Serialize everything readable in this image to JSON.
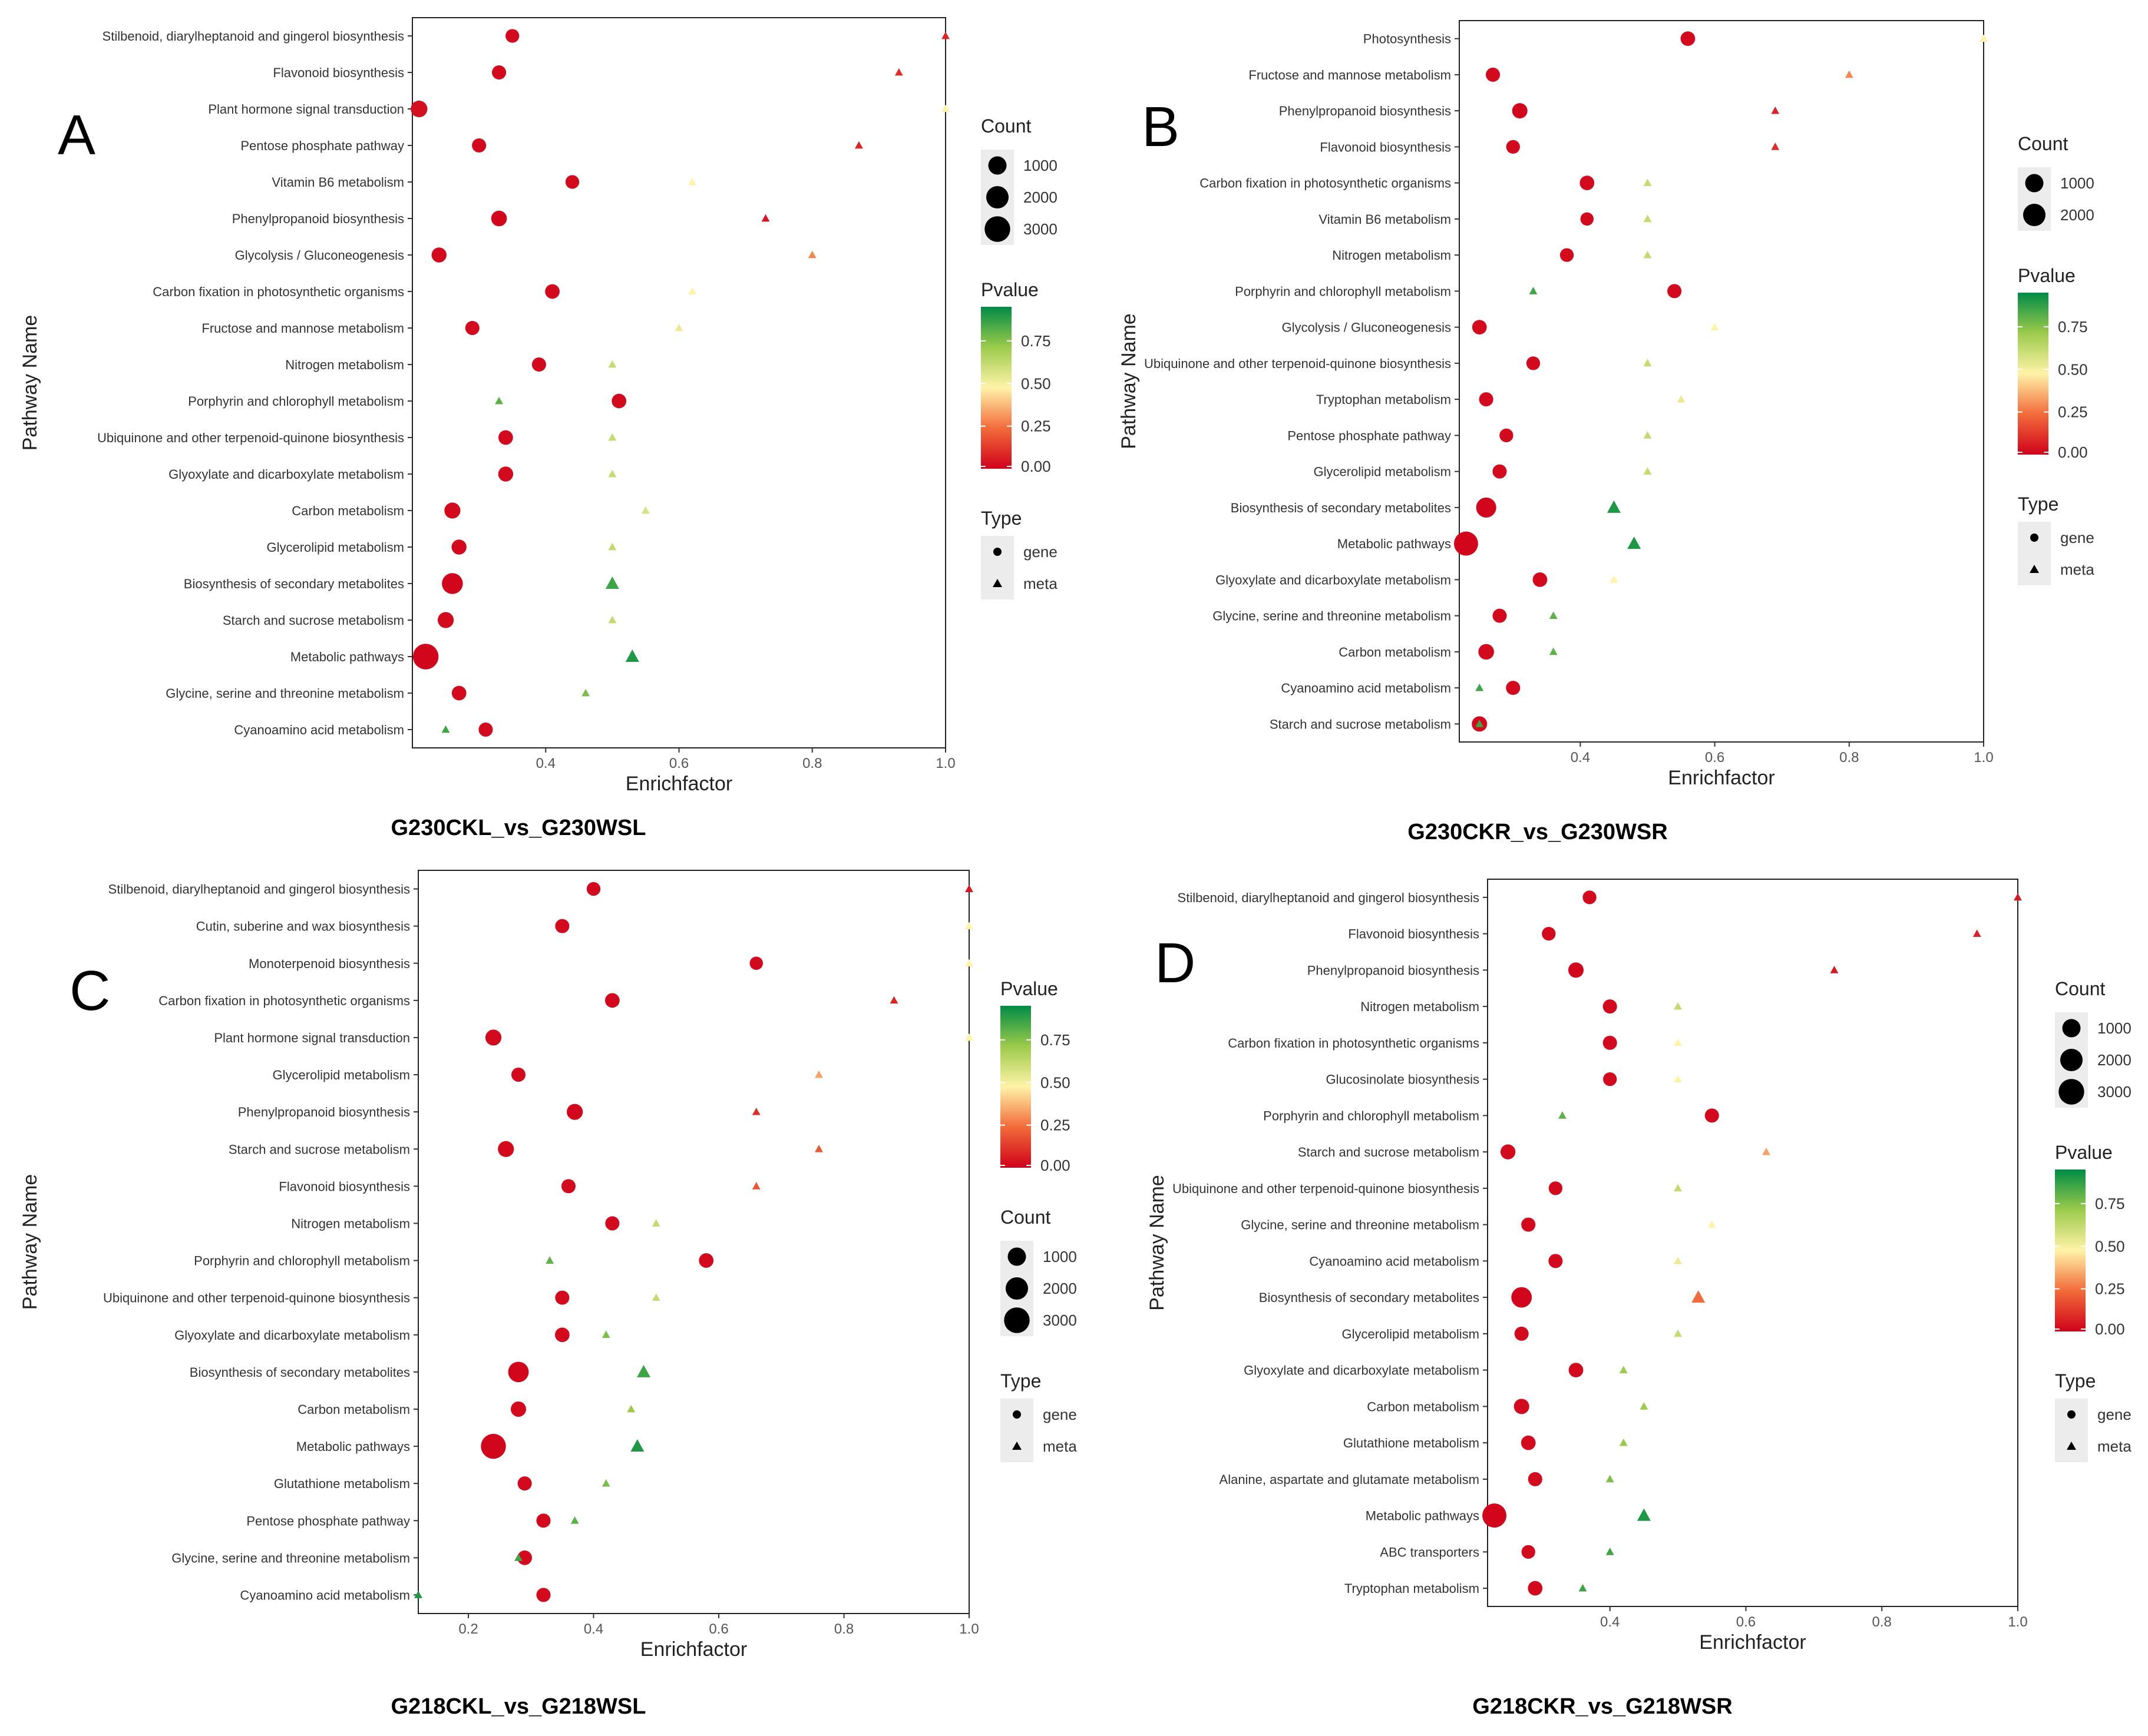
{
  "colors": {
    "grad_top": "#008b45",
    "grad_upper": "#9ccb4b",
    "grad_mid": "#fff3a8",
    "grad_lower": "#f26b3a",
    "grad_bottom": "#d0021b",
    "mark_dark": "#c8102e",
    "mark_green": "#1a8f54"
  },
  "chart_data": [
    {
      "type": "scatter",
      "panel_label": "A",
      "title": "G230CKL_vs_G230WSL",
      "xlabel": "Enrichfactor",
      "ylabel": "Pathway Name",
      "xlim": [
        0.2,
        1.0
      ],
      "xticks": [
        "0.4",
        "0.6",
        "0.8",
        "1.0"
      ],
      "categories": [
        "Stilbenoid, diarylheptanoid and gingerol biosynthesis",
        "Flavonoid biosynthesis",
        "Plant hormone signal transduction",
        "Pentose phosphate pathway",
        "Vitamin B6 metabolism",
        "Phenylpropanoid biosynthesis",
        "Glycolysis / Gluconeogenesis",
        "Carbon fixation in photosynthetic organisms",
        "Fructose and mannose metabolism",
        "Nitrogen metabolism",
        "Porphyrin and chlorophyll metabolism",
        "Ubiquinone and other terpenoid-quinone biosynthesis",
        "Glyoxylate and dicarboxylate metabolism",
        "Carbon metabolism",
        "Glycerolipid metabolism",
        "Biosynthesis of secondary metabolites",
        "Starch and sucrose metabolism",
        "Metabolic pathways",
        "Glycine, serine and threonine metabolism",
        "Cyanoamino acid metabolism"
      ],
      "series": [
        {
          "name": "gene",
          "enrichfactor": [
            0.35,
            0.33,
            0.21,
            0.3,
            0.44,
            0.33,
            0.24,
            0.41,
            0.29,
            0.39,
            0.51,
            0.34,
            0.34,
            0.26,
            0.27,
            0.26,
            0.25,
            0.22,
            0.27,
            0.31
          ],
          "count": [
            300,
            350,
            700,
            350,
            300,
            550,
            450,
            400,
            350,
            350,
            400,
            400,
            450,
            600,
            450,
            1600,
            600,
            3000,
            400,
            350
          ],
          "pvalue": [
            0.02,
            0.02,
            0.03,
            0.02,
            0.02,
            0.01,
            0.02,
            0.02,
            0.02,
            0.02,
            0.02,
            0.02,
            0.02,
            0.02,
            0.02,
            0.01,
            0.02,
            0.01,
            0.02,
            0.02
          ]
        },
        {
          "name": "meta",
          "enrichfactor": [
            1.0,
            0.93,
            1.0,
            0.87,
            0.62,
            0.73,
            0.8,
            0.62,
            0.6,
            0.5,
            0.33,
            0.5,
            0.5,
            0.55,
            0.5,
            0.5,
            0.5,
            0.53,
            0.46,
            0.25
          ],
          "count": [
            1,
            1,
            1,
            1,
            1,
            1,
            1,
            1,
            1,
            1,
            1,
            1,
            1,
            1,
            1,
            3,
            1,
            5,
            1,
            1
          ],
          "pvalue": [
            0.08,
            0.1,
            0.5,
            0.08,
            0.5,
            0.05,
            0.3,
            0.5,
            0.55,
            0.65,
            0.85,
            0.65,
            0.65,
            0.6,
            0.65,
            0.9,
            0.65,
            0.95,
            0.8,
            0.9
          ]
        }
      ],
      "legend": {
        "count_title": "Count",
        "count_levels": [
          1000,
          2000,
          3000
        ],
        "count_labels": [
          "1000",
          "2000",
          "3000"
        ],
        "pvalue_title": "Pvalue",
        "pvalue_ticks": [
          "0.75",
          "0.50",
          "0.25",
          "0.00"
        ],
        "type_title": "Type",
        "type_labels": [
          "gene",
          "meta"
        ],
        "order": [
          "count",
          "pvalue",
          "type"
        ]
      }
    },
    {
      "type": "scatter",
      "panel_label": "B",
      "title": "G230CKR_vs_G230WSR",
      "xlabel": "Enrichfactor",
      "ylabel": "Pathway Name",
      "xlim": [
        0.22,
        1.0
      ],
      "xticks": [
        "0.4",
        "0.6",
        "0.8",
        "1.0"
      ],
      "categories": [
        "Photosynthesis",
        "Fructose and mannose metabolism",
        "Phenylpropanoid biosynthesis",
        "Flavonoid biosynthesis",
        "Carbon fixation in photosynthetic organisms",
        "Vitamin B6 metabolism",
        "Nitrogen metabolism",
        "Porphyrin and chlorophyll metabolism",
        "Glycolysis / Gluconeogenesis",
        "Ubiquinone and other terpenoid-quinone biosynthesis",
        "Tryptophan metabolism",
        "Pentose phosphate pathway",
        "Glycerolipid metabolism",
        "Biosynthesis of secondary metabolites",
        "Metabolic pathways",
        "Glyoxylate and dicarboxylate metabolism",
        "Glycine, serine and threonine metabolism",
        "Carbon metabolism",
        "Cyanoamino acid metabolism",
        "Starch and sucrose metabolism"
      ],
      "series": [
        {
          "name": "gene",
          "enrichfactor": [
            0.56,
            0.27,
            0.31,
            0.3,
            0.41,
            0.41,
            0.38,
            0.54,
            0.25,
            0.33,
            0.26,
            0.29,
            0.28,
            0.26,
            0.23,
            0.34,
            0.28,
            0.26,
            0.3,
            0.25
          ],
          "count": [
            400,
            350,
            500,
            300,
            400,
            250,
            300,
            350,
            400,
            300,
            350,
            300,
            350,
            1400,
            2500,
            400,
            350,
            550,
            350,
            500
          ],
          "pvalue": [
            0.02,
            0.02,
            0.01,
            0.02,
            0.02,
            0.02,
            0.02,
            0.02,
            0.02,
            0.02,
            0.02,
            0.02,
            0.02,
            0.01,
            0.01,
            0.02,
            0.02,
            0.02,
            0.02,
            0.02
          ]
        },
        {
          "name": "meta",
          "enrichfactor": [
            1.0,
            0.8,
            0.69,
            0.69,
            0.5,
            0.5,
            0.5,
            0.33,
            0.6,
            0.5,
            0.55,
            0.5,
            0.5,
            0.45,
            0.48,
            0.45,
            0.36,
            0.36,
            0.25,
            0.25
          ],
          "count": [
            1,
            1,
            1,
            1,
            1,
            1,
            1,
            1,
            1,
            1,
            1,
            1,
            1,
            3,
            5,
            1,
            1,
            1,
            1,
            1
          ],
          "pvalue": [
            0.5,
            0.3,
            0.08,
            0.1,
            0.65,
            0.65,
            0.65,
            0.9,
            0.5,
            0.65,
            0.55,
            0.65,
            0.65,
            0.95,
            0.95,
            0.5,
            0.85,
            0.85,
            0.9,
            0.9
          ]
        }
      ],
      "legend": {
        "count_title": "Count",
        "count_levels": [
          1000,
          2000
        ],
        "count_labels": [
          "1000",
          "2000"
        ],
        "pvalue_title": "Pvalue",
        "pvalue_ticks": [
          "0.75",
          "0.50",
          "0.25",
          "0.00"
        ],
        "type_title": "Type",
        "type_labels": [
          "gene",
          "meta"
        ],
        "order": [
          "count",
          "pvalue",
          "type"
        ]
      }
    },
    {
      "type": "scatter",
      "panel_label": "C",
      "title": "G218CKL_vs_G218WSL",
      "xlabel": "Enrichfactor",
      "ylabel": "Pathway Name",
      "xlim": [
        0.12,
        1.0
      ],
      "xticks": [
        "0.2",
        "0.4",
        "0.6",
        "0.8",
        "1.0"
      ],
      "categories": [
        "Stilbenoid, diarylheptanoid and gingerol biosynthesis",
        "Cutin, suberine and wax biosynthesis",
        "Monoterpenoid biosynthesis",
        "Carbon fixation in photosynthetic organisms",
        "Plant hormone signal transduction",
        "Glycerolipid metabolism",
        "Phenylpropanoid biosynthesis",
        "Starch and sucrose metabolism",
        "Flavonoid biosynthesis",
        "Nitrogen metabolism",
        "Porphyrin and chlorophyll metabolism",
        "Ubiquinone and other terpenoid-quinone biosynthesis",
        "Glyoxylate and dicarboxylate metabolism",
        "Biosynthesis of secondary metabolites",
        "Carbon metabolism",
        "Metabolic pathways",
        "Glutathione metabolism",
        "Pentose phosphate pathway",
        "Glycine, serine and threonine metabolism",
        "Cyanoamino acid metabolism"
      ],
      "series": [
        {
          "name": "gene",
          "enrichfactor": [
            0.4,
            0.35,
            0.66,
            0.43,
            0.24,
            0.28,
            0.37,
            0.26,
            0.36,
            0.43,
            0.58,
            0.35,
            0.35,
            0.28,
            0.28,
            0.24,
            0.29,
            0.32,
            0.29,
            0.32
          ],
          "count": [
            300,
            350,
            250,
            400,
            600,
            350,
            600,
            600,
            350,
            350,
            400,
            350,
            400,
            1500,
            500,
            2800,
            350,
            350,
            400,
            350
          ],
          "pvalue": [
            0.02,
            0.02,
            0.02,
            0.02,
            0.02,
            0.02,
            0.01,
            0.02,
            0.02,
            0.02,
            0.02,
            0.02,
            0.02,
            0.01,
            0.02,
            0.01,
            0.02,
            0.02,
            0.02,
            0.02
          ]
        },
        {
          "name": "meta",
          "enrichfactor": [
            1.0,
            1.0,
            1.0,
            0.88,
            1.0,
            0.76,
            0.66,
            0.76,
            0.66,
            0.5,
            0.33,
            0.5,
            0.42,
            0.48,
            0.46,
            0.47,
            0.42,
            0.37,
            0.28,
            0.12
          ],
          "count": [
            1,
            1,
            1,
            1,
            1,
            1,
            1,
            1,
            1,
            1,
            1,
            1,
            1,
            3,
            1,
            5,
            1,
            1,
            1,
            1
          ],
          "pvalue": [
            0.05,
            0.5,
            0.5,
            0.08,
            0.5,
            0.35,
            0.1,
            0.2,
            0.2,
            0.65,
            0.85,
            0.65,
            0.8,
            0.9,
            0.75,
            0.95,
            0.8,
            0.85,
            0.9,
            0.95
          ]
        }
      ],
      "legend": {
        "count_title": "Count",
        "count_levels": [
          1000,
          2000,
          3000
        ],
        "count_labels": [
          "1000",
          "2000",
          "3000"
        ],
        "pvalue_title": "Pvalue",
        "pvalue_ticks": [
          "0.75",
          "0.50",
          "0.25",
          "0.00"
        ],
        "type_title": "Type",
        "type_labels": [
          "gene",
          "meta"
        ],
        "order": [
          "pvalue",
          "count",
          "type"
        ]
      }
    },
    {
      "type": "scatter",
      "panel_label": "D",
      "title": "G218CKR_vs_G218WSR",
      "xlabel": "Enrichfactor",
      "ylabel": "Pathway Name",
      "xlim": [
        0.22,
        1.0
      ],
      "xticks": [
        "0.4",
        "0.6",
        "0.8",
        "1.0"
      ],
      "categories": [
        "Stilbenoid, diarylheptanoid and gingerol biosynthesis",
        "Flavonoid biosynthesis",
        "Phenylpropanoid biosynthesis",
        "Nitrogen metabolism",
        "Carbon fixation in photosynthetic organisms",
        "Glucosinolate biosynthesis",
        "Porphyrin and chlorophyll metabolism",
        "Starch and sucrose metabolism",
        "Ubiquinone and other terpenoid-quinone biosynthesis",
        "Glycine, serine and threonine metabolism",
        "Cyanoamino acid metabolism",
        "Biosynthesis of secondary metabolites",
        "Glycerolipid metabolism",
        "Glyoxylate and dicarboxylate metabolism",
        "Carbon metabolism",
        "Glutathione metabolism",
        "Alanine, aspartate and glutamate metabolism",
        "Metabolic pathways",
        "ABC transporters",
        "Tryptophan metabolism"
      ],
      "series": [
        {
          "name": "gene",
          "enrichfactor": [
            0.37,
            0.31,
            0.35,
            0.4,
            0.4,
            0.4,
            0.55,
            0.25,
            0.32,
            0.28,
            0.32,
            0.27,
            0.27,
            0.35,
            0.27,
            0.28,
            0.29,
            0.23,
            0.28,
            0.29
          ],
          "count": [
            300,
            300,
            500,
            350,
            350,
            300,
            350,
            450,
            300,
            350,
            350,
            1500,
            350,
            400,
            500,
            400,
            350,
            2500,
            300,
            400
          ],
          "pvalue": [
            0.02,
            0.02,
            0.01,
            0.02,
            0.02,
            0.02,
            0.02,
            0.02,
            0.02,
            0.02,
            0.02,
            0.01,
            0.02,
            0.02,
            0.02,
            0.02,
            0.02,
            0.01,
            0.02,
            0.02
          ]
        },
        {
          "name": "meta",
          "enrichfactor": [
            1.0,
            0.94,
            0.73,
            0.5,
            0.5,
            0.5,
            0.33,
            0.63,
            0.5,
            0.55,
            0.5,
            0.53,
            0.5,
            0.42,
            0.45,
            0.42,
            0.4,
            0.45,
            0.4,
            0.36
          ],
          "count": [
            1,
            1,
            1,
            1,
            1,
            1,
            1,
            1,
            1,
            1,
            1,
            3,
            1,
            1,
            1,
            1,
            1,
            5,
            1,
            1
          ],
          "pvalue": [
            0.05,
            0.08,
            0.05,
            0.65,
            0.5,
            0.5,
            0.85,
            0.35,
            0.65,
            0.5,
            0.55,
            0.25,
            0.65,
            0.75,
            0.75,
            0.75,
            0.8,
            0.95,
            0.9,
            0.9
          ]
        }
      ],
      "legend": {
        "count_title": "Count",
        "count_levels": [
          1000,
          2000,
          3000
        ],
        "count_labels": [
          "1000",
          "2000",
          "3000"
        ],
        "pvalue_title": "Pvalue",
        "pvalue_ticks": [
          "0.75",
          "0.50",
          "0.25",
          "0.00"
        ],
        "type_title": "Type",
        "type_labels": [
          "gene",
          "meta"
        ],
        "order": [
          "count",
          "pvalue",
          "type"
        ]
      }
    }
  ]
}
